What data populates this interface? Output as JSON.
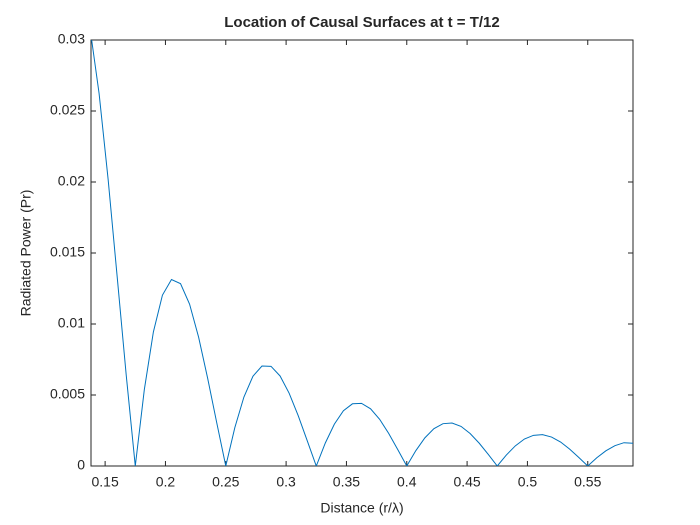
{
  "chart_data": {
    "type": "line",
    "title": "Location of Causal Surfaces at t = T/12",
    "x_label": "Distance (r/λ)",
    "y_label": "Radiated Power (Pr)",
    "x": [
      0.1385,
      0.145,
      0.1525,
      0.16,
      0.1675,
      0.175,
      0.1825,
      0.19,
      0.1975,
      0.205,
      0.2125,
      0.22,
      0.2275,
      0.235,
      0.2425,
      0.25,
      0.2575,
      0.265,
      0.2725,
      0.28,
      0.2875,
      0.295,
      0.3025,
      0.31,
      0.3175,
      0.325,
      0.3325,
      0.34,
      0.3475,
      0.355,
      0.3625,
      0.37,
      0.3775,
      0.385,
      0.3925,
      0.4,
      0.4075,
      0.415,
      0.4225,
      0.43,
      0.4375,
      0.445,
      0.4525,
      0.46,
      0.4675,
      0.475,
      0.4825,
      0.49,
      0.4975,
      0.505,
      0.5125,
      0.52,
      0.5275,
      0.535,
      0.5425,
      0.55,
      0.5575,
      0.565,
      0.5725,
      0.58,
      0.5875
    ],
    "series": [
      {
        "name": "Pr",
        "color": "#0072bd",
        "values": [
          0.03021,
          0.02624,
          0.02018,
          0.01332,
          0.00639,
          0,
          0.00538,
          0.00944,
          0.01203,
          0.01313,
          0.01284,
          0.0114,
          0.00907,
          0.00617,
          0.00305,
          0,
          0.0027,
          0.00485,
          0.00632,
          0.00704,
          0.00702,
          0.00634,
          0.00513,
          0.00355,
          0.00178,
          0,
          0.00162,
          0.00295,
          0.00389,
          0.00438,
          0.00441,
          0.00403,
          0.00329,
          0.0023,
          0.00116,
          0,
          0.00108,
          0.00198,
          0.00263,
          0.00298,
          0.00303,
          0.00279,
          0.00229,
          0.00161,
          0.00082,
          0,
          0.00077,
          0.00142,
          0.0019,
          0.00216,
          0.00221,
          0.00204,
          0.00169,
          0.00119,
          0.00061,
          0,
          0.00058,
          0.00107,
          0.00143,
          0.00164,
          0.0016
        ]
      }
    ],
    "xlim": [
      0.1383,
      0.5875
    ],
    "ylim": [
      0,
      0.03
    ],
    "xticks": [
      0.15,
      0.2,
      0.25,
      0.3,
      0.35,
      0.4,
      0.45,
      0.5,
      0.55
    ],
    "yticks": [
      0,
      0.005,
      0.01,
      0.015,
      0.02,
      0.025,
      0.03
    ],
    "grid": false
  }
}
